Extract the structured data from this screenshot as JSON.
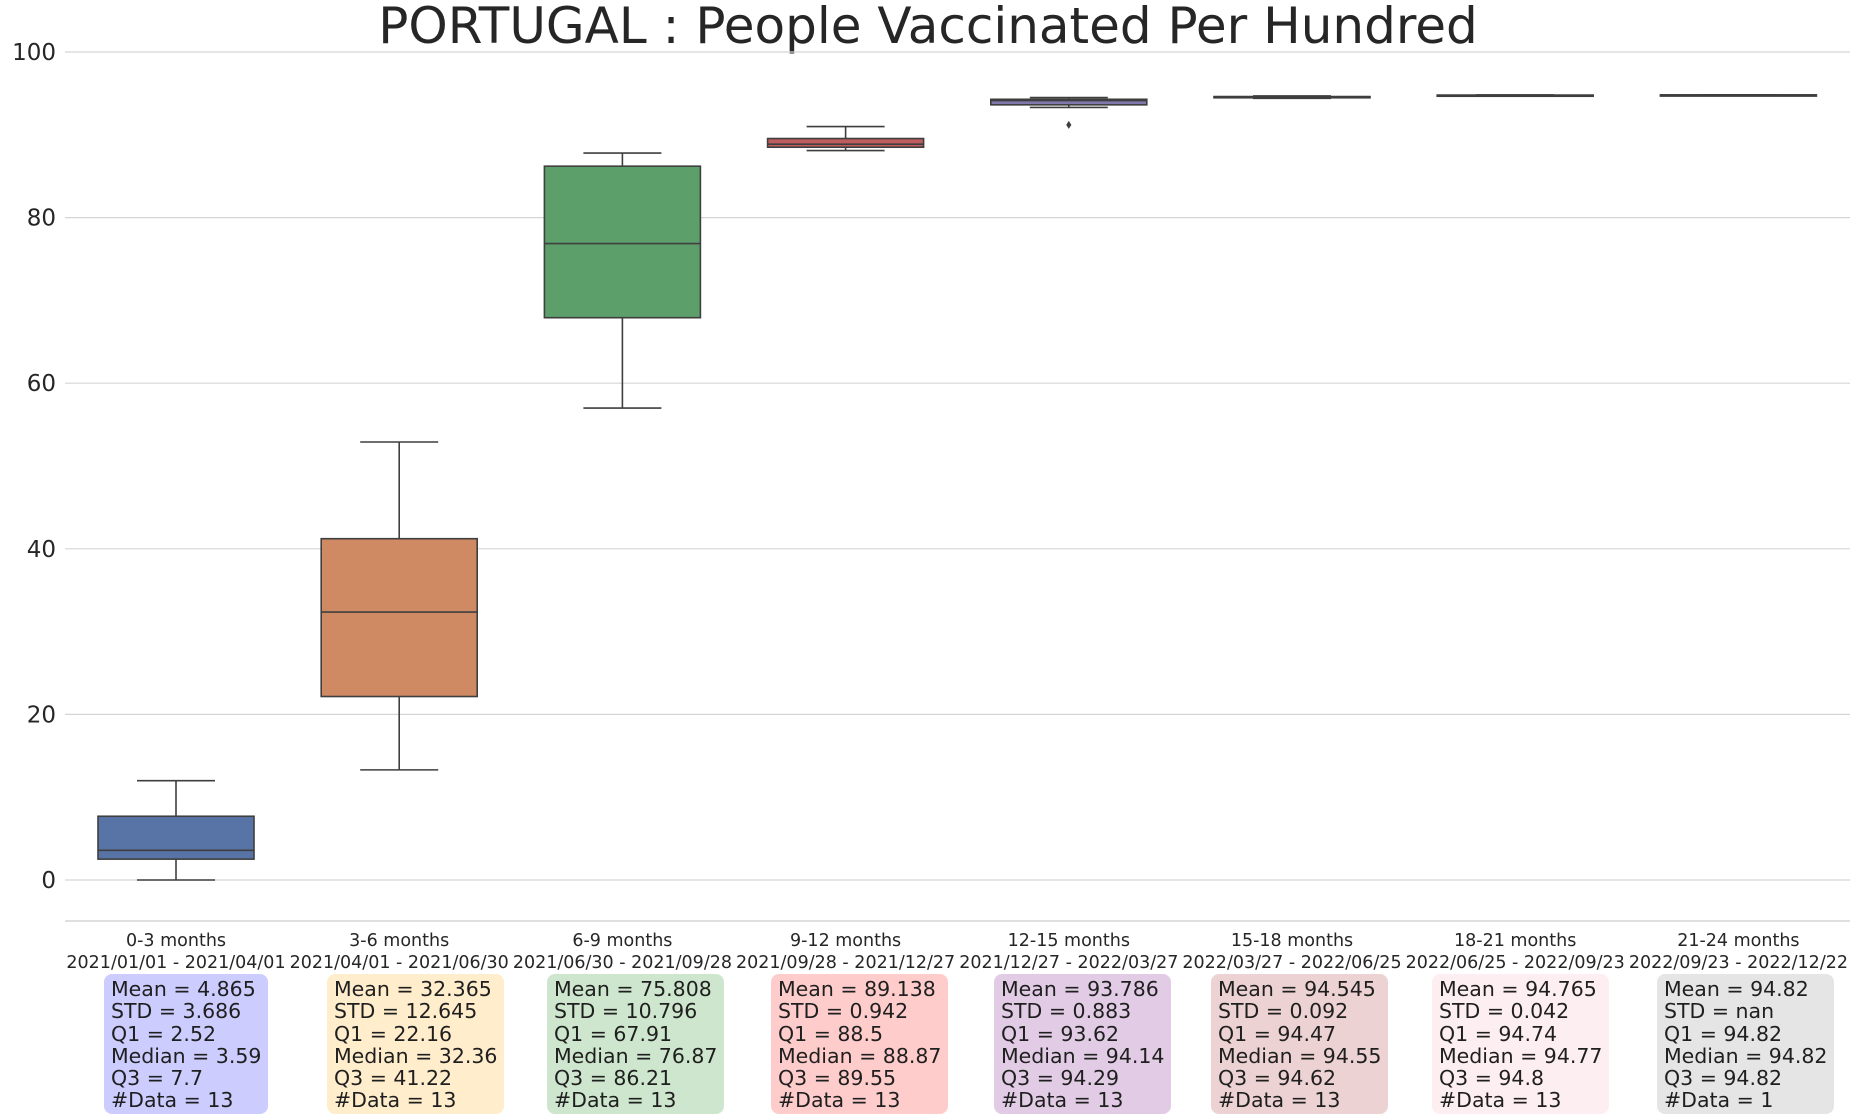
{
  "chart_data": {
    "type": "box",
    "title": "PORTUGAL : People Vaccinated Per Hundred",
    "xlabel": "",
    "ylabel": "",
    "ylim": [
      -5,
      100
    ],
    "yticks": [
      0,
      20,
      40,
      60,
      80,
      100
    ],
    "grid": "horizontal",
    "categories": [
      {
        "label": "0-3 months",
        "range": "2021/01/01 - 2021/04/01",
        "color": "#5874a6",
        "stats_bg": "#ccccff",
        "whisker_low": 0.0,
        "q1": 2.52,
        "median": 3.59,
        "q3": 7.7,
        "whisker_high": 12.0,
        "outliers": [],
        "stats": [
          "Mean = 4.865",
          "STD = 3.686",
          "Q1 = 2.52",
          "Median = 3.59",
          "Q3 = 7.7",
          "#Data = 13"
        ]
      },
      {
        "label": "3-6 months",
        "range": "2021/04/01 - 2021/06/30",
        "color": "#cf8963",
        "stats_bg": "#ffedcc",
        "whisker_low": 13.3,
        "q1": 22.16,
        "median": 32.36,
        "q3": 41.22,
        "whisker_high": 52.9,
        "outliers": [],
        "stats": [
          "Mean = 32.365",
          "STD = 12.645",
          "Q1 = 22.16",
          "Median = 32.36",
          "Q3 = 41.22",
          "#Data = 13"
        ]
      },
      {
        "label": "6-9 months",
        "range": "2021/06/30 - 2021/09/28",
        "color": "#5c9f6b",
        "stats_bg": "#cde6cd",
        "whisker_low": 57.0,
        "q1": 67.91,
        "median": 76.87,
        "q3": 86.21,
        "whisker_high": 87.8,
        "outliers": [],
        "stats": [
          "Mean = 75.808",
          "STD = 10.796",
          "Q1 = 67.91",
          "Median = 76.87",
          "Q3 = 86.21",
          "#Data = 13"
        ]
      },
      {
        "label": "9-12 months",
        "range": "2021/09/28 - 2021/12/27",
        "color": "#bf5c5e",
        "stats_bg": "#ffcccc",
        "whisker_low": 88.1,
        "q1": 88.5,
        "median": 88.87,
        "q3": 89.55,
        "whisker_high": 91.0,
        "outliers": [],
        "stats": [
          "Mean = 89.138",
          "STD = 0.942",
          "Q1 = 88.5",
          "Median = 88.87",
          "Q3 = 89.55",
          "#Data = 13"
        ]
      },
      {
        "label": "12-15 months",
        "range": "2021/12/27 - 2022/03/27",
        "color": "#8077ad",
        "stats_bg": "#e2cce5",
        "whisker_low": 93.3,
        "q1": 93.62,
        "median": 94.14,
        "q3": 94.29,
        "whisker_high": 94.5,
        "outliers": [
          91.2
        ],
        "stats": [
          "Mean = 93.786",
          "STD = 0.883",
          "Q1 = 93.62",
          "Median = 94.14",
          "Q3 = 94.29",
          "#Data = 13"
        ]
      },
      {
        "label": "15-18 months",
        "range": "2022/03/27 - 2022/06/25",
        "color": "#937060",
        "stats_bg": "#ecd2d2",
        "whisker_low": 94.4,
        "q1": 94.47,
        "median": 94.55,
        "q3": 94.62,
        "whisker_high": 94.7,
        "outliers": [],
        "stats": [
          "Mean = 94.545",
          "STD = 0.092",
          "Q1 = 94.47",
          "Median = 94.55",
          "Q3 = 94.62",
          "#Data = 13"
        ]
      },
      {
        "label": "18-21 months",
        "range": "2022/06/25 - 2022/09/23",
        "color": "#d58cc0",
        "stats_bg": "#fdeef2",
        "whisker_low": 94.7,
        "q1": 94.74,
        "median": 94.77,
        "q3": 94.8,
        "whisker_high": 94.82,
        "outliers": [],
        "stats": [
          "Mean = 94.765",
          "STD = 0.042",
          "Q1 = 94.74",
          "Median = 94.77",
          "Q3 = 94.8",
          "#Data = 13"
        ]
      },
      {
        "label": "21-24 months",
        "range": "2022/09/23 - 2022/12/22",
        "color": "#8c8c8c",
        "stats_bg": "#e5e5e5",
        "whisker_low": 94.82,
        "q1": 94.82,
        "median": 94.82,
        "q3": 94.82,
        "whisker_high": 94.82,
        "outliers": [],
        "stats": [
          "Mean = 94.82",
          "STD = nan",
          "Q1 = 94.82",
          "Median = 94.82",
          "Q3 = 94.82",
          "#Data = 1"
        ]
      }
    ]
  }
}
